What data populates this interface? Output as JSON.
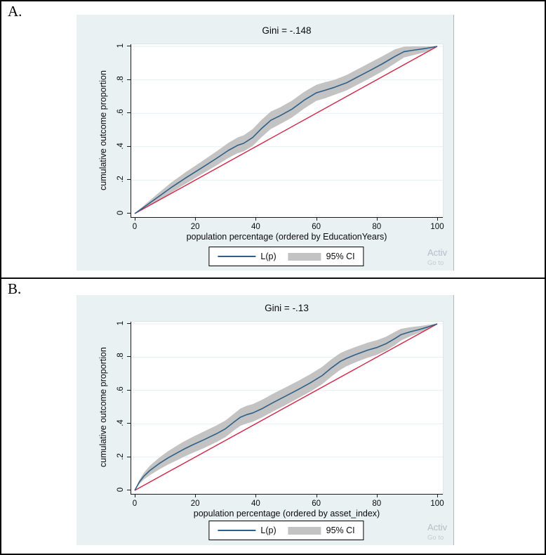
{
  "watermark": {
    "line1": "Activ",
    "line2": "Go to"
  },
  "colors": {
    "line": "#2e5f88",
    "diagonal": "#d02545",
    "band": "#c3c3c3",
    "graph_bg": "#e9f1f3",
    "grid": "#e7eff2",
    "axis": "#1a1a1a"
  },
  "chart_data": [
    {
      "type": "line",
      "panel": "A.",
      "title": "Gini = -.148",
      "xlabel": "population percentage (ordered by EducationYears)",
      "ylabel": "cumulative outcome proportion",
      "xlim": [
        0,
        100
      ],
      "ylim": [
        0,
        1
      ],
      "xticks": [
        0,
        20,
        40,
        60,
        80,
        100
      ],
      "yticks": [
        0,
        0.2,
        0.4,
        0.6,
        0.8,
        1
      ],
      "ytick_labels": [
        "0",
        ".2",
        ".4",
        ".6",
        ".8",
        "1"
      ],
      "grid": "horizontal",
      "legend_position": "bottom-center",
      "series": [
        {
          "name": "L(p)",
          "color": "#2e5f88",
          "points": [
            [
              0,
              0
            ],
            [
              3,
              0.038
            ],
            [
              7,
              0.09
            ],
            [
              12,
              0.155
            ],
            [
              17,
              0.215
            ],
            [
              22,
              0.272
            ],
            [
              27,
              0.33
            ],
            [
              31,
              0.378
            ],
            [
              34,
              0.408
            ],
            [
              36,
              0.42
            ],
            [
              39,
              0.455
            ],
            [
              42,
              0.51
            ],
            [
              45,
              0.558
            ],
            [
              48,
              0.585
            ],
            [
              52,
              0.625
            ],
            [
              56,
              0.678
            ],
            [
              60,
              0.722
            ],
            [
              63,
              0.738
            ],
            [
              66,
              0.755
            ],
            [
              70,
              0.782
            ],
            [
              74,
              0.82
            ],
            [
              78,
              0.858
            ],
            [
              82,
              0.897
            ],
            [
              86,
              0.94
            ],
            [
              89,
              0.968
            ],
            [
              92,
              0.977
            ],
            [
              96,
              0.987
            ],
            [
              100,
              1
            ]
          ]
        },
        {
          "name": "95% CI",
          "color": "#c3c3c3",
          "upper": [
            [
              0,
              0
            ],
            [
              3,
              0.048
            ],
            [
              7,
              0.11
            ],
            [
              12,
              0.185
            ],
            [
              17,
              0.25
            ],
            [
              22,
              0.31
            ],
            [
              27,
              0.372
            ],
            [
              31,
              0.423
            ],
            [
              34,
              0.455
            ],
            [
              36,
              0.468
            ],
            [
              39,
              0.505
            ],
            [
              42,
              0.562
            ],
            [
              45,
              0.61
            ],
            [
              48,
              0.635
            ],
            [
              52,
              0.675
            ],
            [
              56,
              0.728
            ],
            [
              60,
              0.77
            ],
            [
              63,
              0.786
            ],
            [
              66,
              0.8
            ],
            [
              70,
              0.828
            ],
            [
              74,
              0.866
            ],
            [
              78,
              0.904
            ],
            [
              82,
              0.942
            ],
            [
              86,
              0.982
            ],
            [
              89,
              0.998
            ],
            [
              92,
              1
            ],
            [
              96,
              1
            ],
            [
              100,
              1
            ]
          ],
          "lower": [
            [
              0,
              0
            ],
            [
              3,
              0.028
            ],
            [
              7,
              0.07
            ],
            [
              12,
              0.125
            ],
            [
              17,
              0.18
            ],
            [
              22,
              0.234
            ],
            [
              27,
              0.288
            ],
            [
              31,
              0.333
            ],
            [
              34,
              0.361
            ],
            [
              36,
              0.372
            ],
            [
              39,
              0.405
            ],
            [
              42,
              0.458
            ],
            [
              45,
              0.506
            ],
            [
              48,
              0.535
            ],
            [
              52,
              0.575
            ],
            [
              56,
              0.628
            ],
            [
              60,
              0.674
            ],
            [
              63,
              0.69
            ],
            [
              66,
              0.71
            ],
            [
              70,
              0.736
            ],
            [
              74,
              0.774
            ],
            [
              78,
              0.812
            ],
            [
              82,
              0.852
            ],
            [
              86,
              0.898
            ],
            [
              89,
              0.933
            ],
            [
              92,
              0.947
            ],
            [
              96,
              0.965
            ],
            [
              100,
              1
            ]
          ]
        },
        {
          "name": "equality_line",
          "color": "#d02545",
          "points": [
            [
              0,
              0
            ],
            [
              100,
              1
            ]
          ]
        }
      ]
    },
    {
      "type": "line",
      "panel": "B.",
      "title": "Gini = -.13",
      "xlabel": "population percentage (ordered by asset_index)",
      "ylabel": "cumulative outcome proportion",
      "xlim": [
        0,
        100
      ],
      "ylim": [
        0,
        1
      ],
      "xticks": [
        0,
        20,
        40,
        60,
        80,
        100
      ],
      "yticks": [
        0,
        0.2,
        0.4,
        0.6,
        0.8,
        1
      ],
      "ytick_labels": [
        "0",
        ".2",
        ".4",
        ".6",
        ".8",
        "1"
      ],
      "grid": "horizontal",
      "legend_position": "bottom-center",
      "series": [
        {
          "name": "L(p)",
          "color": "#2e5f88",
          "points": [
            [
              0,
              0
            ],
            [
              1.5,
              0.05
            ],
            [
              3,
              0.085
            ],
            [
              5,
              0.12
            ],
            [
              8,
              0.16
            ],
            [
              11,
              0.195
            ],
            [
              14,
              0.225
            ],
            [
              16,
              0.245
            ],
            [
              19,
              0.272
            ],
            [
              23,
              0.305
            ],
            [
              27,
              0.34
            ],
            [
              30,
              0.37
            ],
            [
              33,
              0.413
            ],
            [
              35,
              0.44
            ],
            [
              37,
              0.455
            ],
            [
              39,
              0.465
            ],
            [
              42,
              0.49
            ],
            [
              46,
              0.53
            ],
            [
              50,
              0.567
            ],
            [
              54,
              0.605
            ],
            [
              58,
              0.645
            ],
            [
              62,
              0.69
            ],
            [
              65,
              0.735
            ],
            [
              68,
              0.775
            ],
            [
              70,
              0.793
            ],
            [
              73,
              0.815
            ],
            [
              77,
              0.842
            ],
            [
              80,
              0.858
            ],
            [
              83,
              0.88
            ],
            [
              86,
              0.912
            ],
            [
              88,
              0.935
            ],
            [
              91,
              0.952
            ],
            [
              94,
              0.966
            ],
            [
              97,
              0.982
            ],
            [
              100,
              1
            ]
          ]
        },
        {
          "name": "95% CI",
          "color": "#c3c3c3",
          "upper": [
            [
              0,
              0
            ],
            [
              1.5,
              0.062
            ],
            [
              3,
              0.105
            ],
            [
              5,
              0.148
            ],
            [
              8,
              0.195
            ],
            [
              11,
              0.235
            ],
            [
              14,
              0.269
            ],
            [
              16,
              0.291
            ],
            [
              19,
              0.32
            ],
            [
              23,
              0.355
            ],
            [
              27,
              0.39
            ],
            [
              30,
              0.42
            ],
            [
              33,
              0.463
            ],
            [
              35,
              0.492
            ],
            [
              37,
              0.508
            ],
            [
              39,
              0.518
            ],
            [
              42,
              0.543
            ],
            [
              46,
              0.583
            ],
            [
              50,
              0.62
            ],
            [
              54,
              0.657
            ],
            [
              58,
              0.697
            ],
            [
              62,
              0.742
            ],
            [
              65,
              0.787
            ],
            [
              68,
              0.825
            ],
            [
              70,
              0.841
            ],
            [
              73,
              0.861
            ],
            [
              77,
              0.887
            ],
            [
              80,
              0.902
            ],
            [
              83,
              0.922
            ],
            [
              86,
              0.952
            ],
            [
              88,
              0.97
            ],
            [
              91,
              0.98
            ],
            [
              94,
              0.986
            ],
            [
              97,
              0.994
            ],
            [
              100,
              1
            ]
          ],
          "lower": [
            [
              0,
              0
            ],
            [
              1.5,
              0.038
            ],
            [
              3,
              0.065
            ],
            [
              5,
              0.092
            ],
            [
              8,
              0.125
            ],
            [
              11,
              0.155
            ],
            [
              14,
              0.181
            ],
            [
              16,
              0.199
            ],
            [
              19,
              0.224
            ],
            [
              23,
              0.255
            ],
            [
              27,
              0.29
            ],
            [
              30,
              0.32
            ],
            [
              33,
              0.363
            ],
            [
              35,
              0.388
            ],
            [
              37,
              0.402
            ],
            [
              39,
              0.412
            ],
            [
              42,
              0.437
            ],
            [
              46,
              0.477
            ],
            [
              50,
              0.514
            ],
            [
              54,
              0.553
            ],
            [
              58,
              0.593
            ],
            [
              62,
              0.638
            ],
            [
              65,
              0.683
            ],
            [
              68,
              0.725
            ],
            [
              70,
              0.745
            ],
            [
              73,
              0.769
            ],
            [
              77,
              0.797
            ],
            [
              80,
              0.814
            ],
            [
              83,
              0.838
            ],
            [
              86,
              0.872
            ],
            [
              88,
              0.9
            ],
            [
              91,
              0.924
            ],
            [
              94,
              0.946
            ],
            [
              97,
              0.97
            ],
            [
              100,
              1
            ]
          ]
        },
        {
          "name": "equality_line",
          "color": "#d02545",
          "points": [
            [
              0,
              0
            ],
            [
              100,
              1
            ]
          ]
        }
      ]
    }
  ]
}
